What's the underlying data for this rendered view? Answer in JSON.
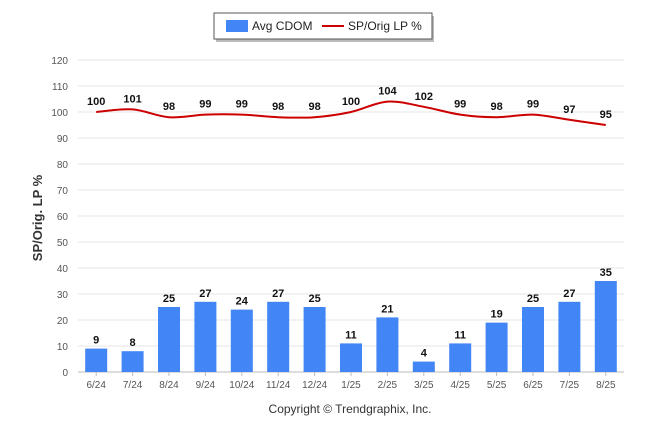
{
  "chart_data": {
    "type": "bar",
    "categories": [
      "6/24",
      "7/24",
      "8/24",
      "9/24",
      "10/24",
      "11/24",
      "12/24",
      "1/25",
      "2/25",
      "3/25",
      "4/25",
      "5/25",
      "6/25",
      "7/25",
      "8/25"
    ],
    "series": [
      {
        "name": "Avg CDOM",
        "type": "bar",
        "color": "#4285f4",
        "values": [
          9,
          8,
          25,
          27,
          24,
          27,
          25,
          11,
          21,
          4,
          11,
          19,
          25,
          27,
          35
        ]
      },
      {
        "name": "SP/Orig LP %",
        "type": "line",
        "color": "#cc0000",
        "values": [
          100,
          101,
          98,
          99,
          99,
          98,
          98,
          100,
          104,
          102,
          99,
          98,
          99,
          97,
          95
        ]
      }
    ],
    "ylabel": "SP/Orig. LP %",
    "xlabel": "",
    "ylim": [
      0,
      120
    ],
    "yticks": [
      0,
      10,
      20,
      30,
      40,
      50,
      60,
      70,
      80,
      90,
      100,
      110,
      120
    ],
    "grid": true,
    "legend_position": "top-center"
  },
  "footer": {
    "copyright": "Copyright © Trendgraphix, Inc."
  }
}
